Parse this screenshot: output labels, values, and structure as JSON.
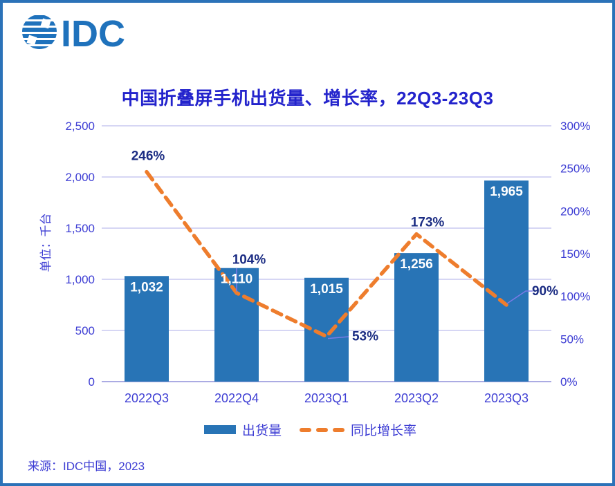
{
  "logo": {
    "text": "IDC"
  },
  "source": "来源：IDC中国，2023",
  "colors": {
    "bar": "#2874B6",
    "line": "#EE7D2D",
    "grid": "#BEBEEE",
    "baseline": "#ABABE3",
    "axis_text": "#3E3ED4",
    "title": "#2323CC",
    "data_label": "#1B2C83",
    "bar_label": "#FFFFFF",
    "leader": "#7A7AE6",
    "border": "#2B72B8",
    "logo": "#1F72BC"
  },
  "chart_data": {
    "type": "bar",
    "subtype": "dual-axis bar + dashed line",
    "title": "中国折叠屏手机出货量、增长率，22Q3-23Q3",
    "categories": [
      "2022Q3",
      "2022Q4",
      "2023Q1",
      "2023Q2",
      "2023Q3"
    ],
    "series": [
      {
        "name": "出货量",
        "type": "bar",
        "axis": "left",
        "values": [
          1032,
          1110,
          1015,
          1256,
          1965
        ],
        "labels": [
          "1,032",
          "1,110",
          "1,015",
          "1,256",
          "1,965"
        ]
      },
      {
        "name": "同比增长率",
        "type": "line",
        "line_style": "dashed",
        "axis": "right",
        "values": [
          246,
          104,
          53,
          173,
          90
        ],
        "labels": [
          "246%",
          "104%",
          "53%",
          "173%",
          "90%"
        ]
      }
    ],
    "left_axis": {
      "title": "单位：千台",
      "range": [
        0,
        2500
      ],
      "ticks": [
        0,
        500,
        1000,
        1500,
        2000,
        2500
      ],
      "tick_labels": [
        "0",
        "500",
        "1,000",
        "1,500",
        "2,000",
        "2,500"
      ]
    },
    "right_axis": {
      "range": [
        0,
        300
      ],
      "ticks": [
        0,
        50,
        100,
        150,
        200,
        250,
        300
      ],
      "tick_labels": [
        "0%",
        "50%",
        "100%",
        "150%",
        "200%",
        "250%",
        "300%"
      ]
    },
    "grid": true,
    "legend": {
      "position": "bottom",
      "items": [
        {
          "label": "出货量",
          "swatch": "bar"
        },
        {
          "label": "同比增长率",
          "swatch": "dashed-line"
        }
      ]
    }
  }
}
